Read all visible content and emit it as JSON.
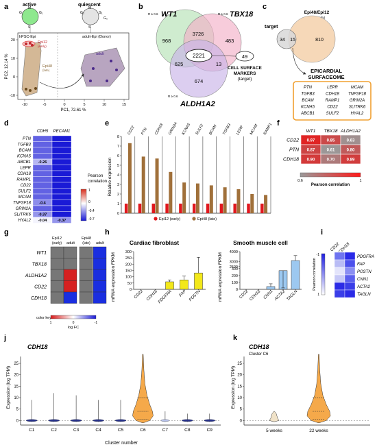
{
  "panel_letters": [
    "a",
    "b",
    "c",
    "d",
    "e",
    "f",
    "g",
    "h",
    "i",
    "j",
    "k"
  ],
  "a": {
    "active": "active",
    "quiescent": "quiescent",
    "cycle_active": [
      "M",
      "G₂",
      "G₁",
      "S"
    ],
    "cycle_quiescent": [
      "G₂",
      "M",
      "G₁",
      "G₀",
      "S"
    ],
    "hpsc": "hPSC-Epi",
    "adult_donor": "adult-Epi (Donor)",
    "epi12": "Epi12",
    "epi12_sub": "(early)",
    "epi48": "Epi48",
    "epi48_sub": "(late)",
    "adult": "adult",
    "xlabel": "PC1, 72.61 %",
    "ylabel": "PC2, 12.14 %",
    "xticks": [
      "-10",
      "-5",
      "0",
      "5",
      "10",
      "15"
    ],
    "yticks": [
      "20",
      "10",
      "0",
      "-10"
    ]
  },
  "b": {
    "r1": "R ≥ 0.6",
    "r2": "R ≥ 0.6",
    "r3": "R ≥ 0.6",
    "wt1": "WT1",
    "tbx18": "TBX18",
    "aldh": "ALDH1A2",
    "n968": "968",
    "n3726": "3726",
    "n483": "483",
    "n2221": "2221",
    "n625": "625",
    "n13": "13",
    "n674": "674",
    "n49": "49",
    "csm1": "CELL SURFACE",
    "csm2": "MARKERS",
    "csm3": "(target)"
  },
  "c": {
    "title": "Epi48/Epi12",
    "sub": "(late)/(early)",
    "target": "target",
    "n34": "34",
    "n15": "15",
    "n810": "810",
    "surf1": "EPICARDIAL",
    "surf2": "SURFACEOME",
    "genes": [
      "PTN",
      "LEPR",
      "MCAM",
      "TGFB3",
      "CDH18",
      "TNFSF18",
      "BCAM",
      "RAMP1",
      "GRIN2A",
      "KCNA5",
      "CD22",
      "SLITRK6",
      "ABCB1",
      "SULF2",
      "HYAL2"
    ]
  },
  "d": {
    "cols": [
      "CDH5",
      "PECAM1"
    ],
    "rows": [
      "PTN",
      "TGFB3",
      "BCAM",
      "KCNA5",
      "ABCB1",
      "LEPR",
      "CDH18",
      "RAMP1",
      "CD22",
      "SULF2",
      "MCAM",
      "TNFSF18",
      "GRIN2A",
      "SLITRK6",
      "HYAL2"
    ],
    "cdh5": [
      -0.55,
      -0.55,
      -0.55,
      -0.55,
      -0.26,
      -0.55,
      -0.55,
      -0.55,
      -0.55,
      -0.55,
      -0.55,
      -0.4,
      -0.55,
      -0.37,
      -0.04
    ],
    "pecam1": [
      -0.8,
      -0.8,
      -0.8,
      -0.8,
      -0.8,
      -0.8,
      -0.8,
      -0.8,
      -0.8,
      -0.8,
      -0.8,
      -0.8,
      -0.8,
      -0.8,
      -0.37
    ],
    "labels": [
      [
        "",
        "",
        "",
        "",
        "-0.26",
        "",
        "",
        "",
        "",
        "",
        "",
        "-0.4",
        "",
        "-0.37",
        "-0.04"
      ],
      [
        "",
        "",
        "",
        "",
        "",
        "",
        "",
        "",
        "",
        "",
        "",
        "",
        "",
        "",
        "-0.37"
      ]
    ],
    "legend_title1": "Pearson",
    "legend_title2": "correlation",
    "ticks": [
      "1",
      "0",
      "-0.4",
      "-0.7"
    ]
  },
  "e": {
    "ylabel": "Relative expression",
    "yticks": [
      "0",
      "1",
      "2",
      "3",
      "4",
      "5",
      "6",
      "7",
      "8"
    ],
    "legend_early": "Epi12 (early)",
    "legend_late": "Epi48 (late)"
  },
  "f": {
    "cols": [
      "WT1",
      "TBX18",
      "ALDH1A2"
    ],
    "rows": [
      "CD22",
      "PTN",
      "CDH18"
    ],
    "values": [
      [
        "0.97",
        "0.85",
        "0.63"
      ],
      [
        "0.87",
        "0.61",
        "0.80"
      ],
      [
        "0.90",
        "0.70",
        "0.89"
      ]
    ],
    "lmin": "0.6",
    "lmax": "1",
    "legend": "Pearson correlation"
  },
  "g": {
    "h1": "Epi12",
    "h1s": "(early)",
    "h2": "adult",
    "h3": "Epi48",
    "h3s": "(late)",
    "h4": "adult",
    "rows": [
      "WT1",
      "TBX18",
      "ALDH1A2",
      "CD22",
      "CDH18"
    ],
    "ck": "color key",
    "ckl": "1",
    "ckm": "0",
    "ckr": "-1",
    "lfc": "log FC"
  },
  "h": {
    "t1": "Cardiac fibroblast",
    "t2": "Smooth muscle cell",
    "ylabel": "mRNA expression FPKM",
    "yt1": [
      "0",
      "50",
      "100",
      "150",
      "200",
      "250",
      "300"
    ],
    "yt2": [
      "0",
      "100",
      "200",
      "300",
      "2500",
      "3000",
      "4000"
    ],
    "x1": [
      "CD22",
      "CDH18",
      "PDGFRA",
      "FAP",
      "POSTN"
    ],
    "x2": [
      "CD22",
      "CDH18",
      "CNN1",
      "ACTA2",
      "TAGLN"
    ]
  },
  "i": {
    "cols": [
      "CD22",
      "CDH18"
    ],
    "rows": [
      "PDGFRA",
      "FAP",
      "POSTN",
      "CNN1",
      "ACTA2",
      "TAGLN"
    ],
    "legend": "Pearson correlation",
    "lt": "-1",
    "lb": "1"
  },
  "j": {
    "title": "CDH18",
    "ylabel": "Expression (log TPM)",
    "xlabel": "Cluster number",
    "yticks": [
      "0",
      "5",
      "10",
      "15",
      "20",
      "25"
    ],
    "clusters": [
      "C1",
      "C2",
      "C3",
      "C4",
      "C5",
      "C6",
      "C7",
      "C8",
      "C9"
    ]
  },
  "k": {
    "title": "CDH18",
    "sub": "Cluster C6",
    "ylabel": "Expression (log TPM)",
    "yticks": [
      "0",
      "5",
      "10",
      "15",
      "20",
      "25"
    ],
    "xcats": [
      "5 weeks",
      "22 weeks"
    ]
  },
  "chart_data": [
    {
      "type": "bar",
      "panel": "e",
      "categories": [
        "CD22",
        "PTN",
        "CDH18",
        "GRIN2A",
        "KCNA5",
        "SULF2",
        "BCAM",
        "TGFB3",
        "LEPR",
        "MCAM",
        "RAMP1"
      ],
      "series": [
        {
          "name": "Epi12 (early)",
          "values": [
            1,
            1,
            1,
            1,
            1,
            1,
            1,
            1,
            1,
            1,
            1
          ]
        },
        {
          "name": "Epi48 (late)",
          "values": [
            7.3,
            5.9,
            5.7,
            4.3,
            3.2,
            3.1,
            2.9,
            2.7,
            2.5,
            2.0,
            1.9
          ]
        }
      ],
      "ylabel": "Relative expression",
      "ylim": [
        0,
        8
      ]
    },
    {
      "type": "bar",
      "panel": "h-cardiac-fibroblast",
      "categories": [
        "CD22",
        "CDH18",
        "PDGFRA",
        "FAP",
        "POSTN"
      ],
      "values": [
        0,
        0,
        60,
        75,
        130
      ],
      "errors": [
        0,
        0,
        15,
        30,
        125
      ],
      "ylim": [
        0,
        300
      ],
      "ylabel": "mRNA expression FPKM"
    },
    {
      "type": "bar",
      "panel": "h-smooth-muscle",
      "categories": [
        "CD22",
        "CDH18",
        "CNN1",
        "ACTA2",
        "TAGLN"
      ],
      "values": [
        0,
        0,
        40,
        270,
        3100
      ],
      "errors": [
        0,
        0,
        40,
        80,
        500
      ],
      "ylabel": "mRNA expression FPKM"
    }
  ]
}
